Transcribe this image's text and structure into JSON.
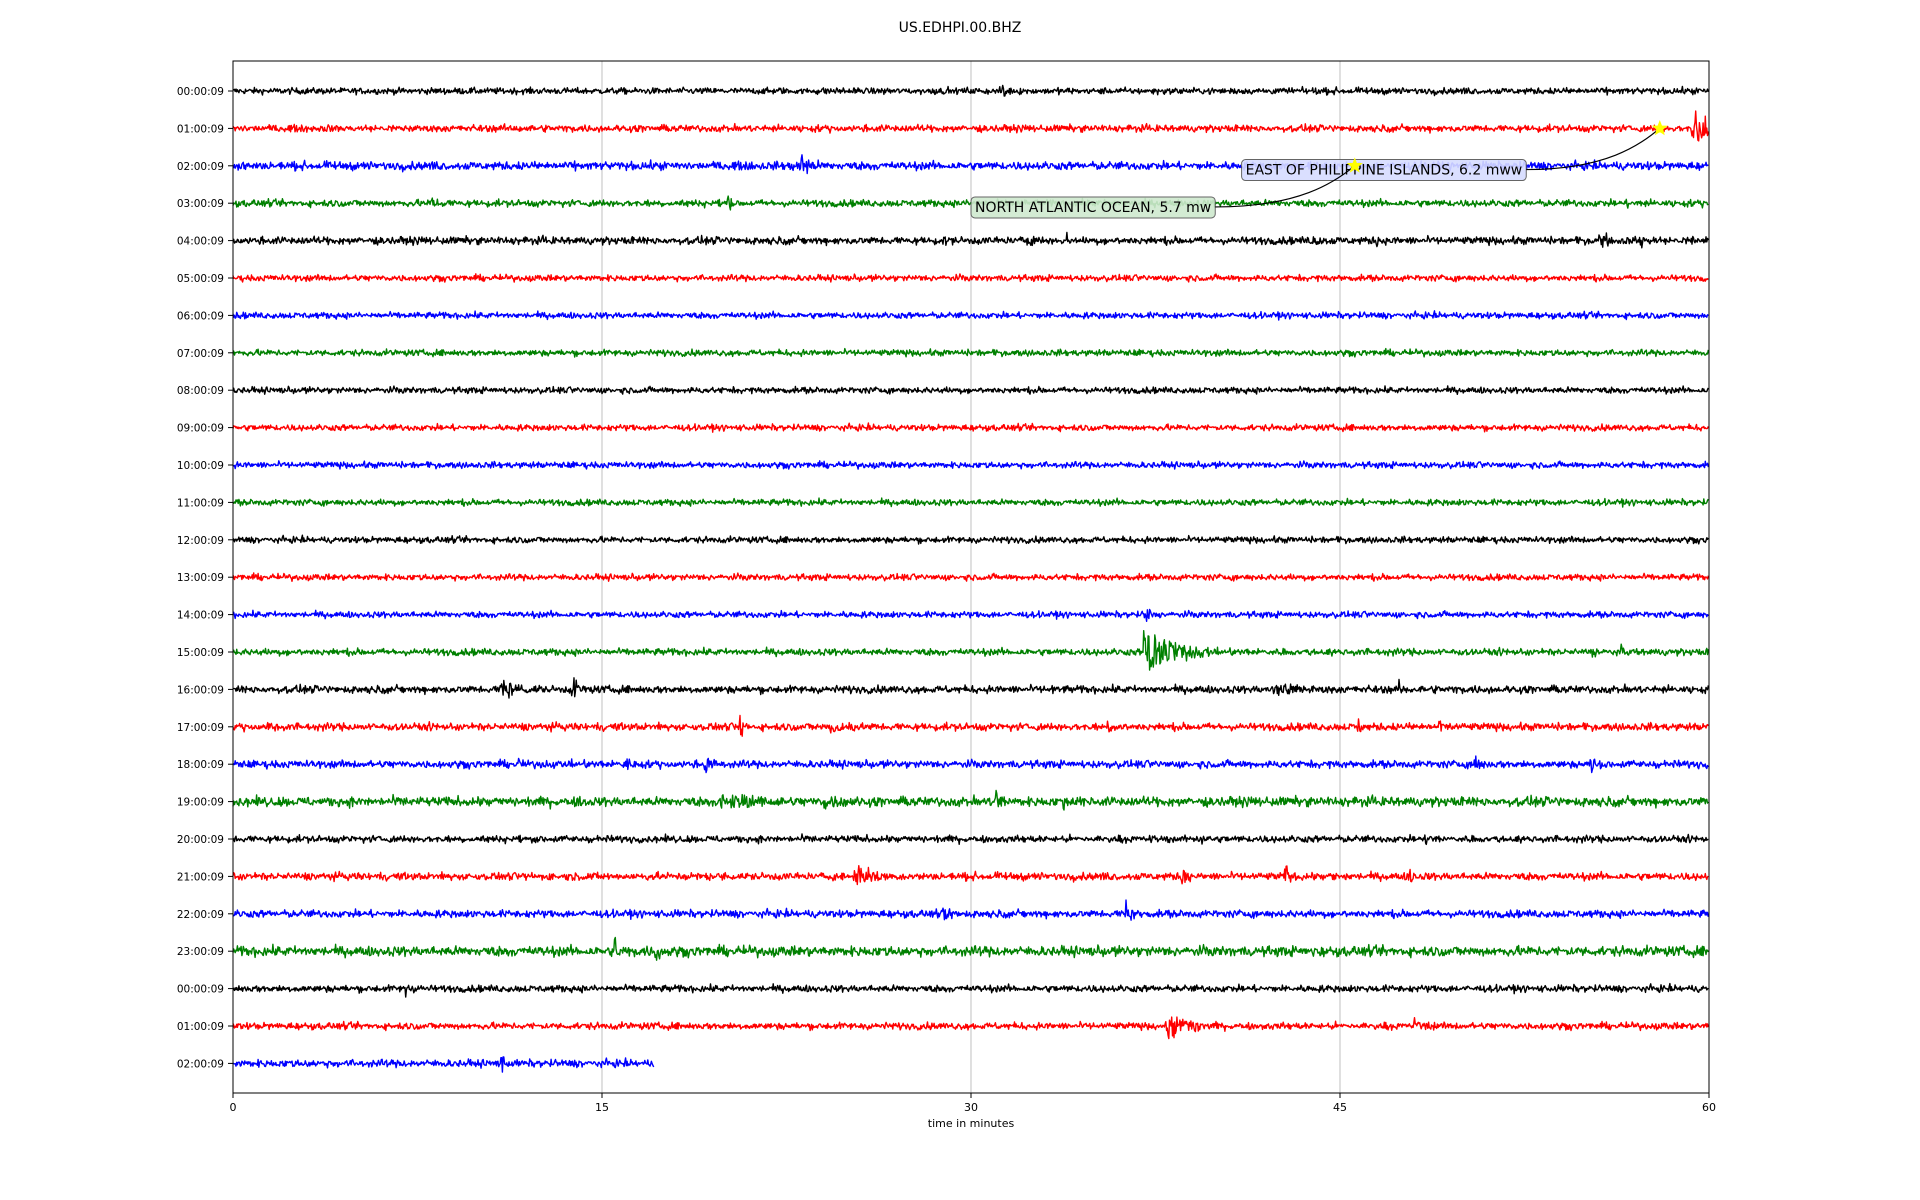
{
  "chart_data": {
    "type": "line",
    "title": "US.EDHPI.00.BHZ",
    "xlabel": "time in minutes",
    "ylabel": "",
    "xlim": [
      0,
      60
    ],
    "x_ticks": [
      0,
      15,
      30,
      45,
      60
    ],
    "x_tick_labels": [
      "0",
      "15",
      "30",
      "45",
      "60"
    ],
    "grid": "vertical",
    "colors": [
      "#000000",
      "#ff0000",
      "#0000ff",
      "#008000"
    ],
    "rows": [
      {
        "label": "00:00:09",
        "end_minute": 60,
        "noise": 1.0,
        "events": [
          {
            "t": 31.3,
            "amp": 13,
            "dur": 0.2
          },
          {
            "t": 21.8,
            "amp": 3,
            "dur": 0.1
          }
        ]
      },
      {
        "label": "01:00:09",
        "end_minute": 60,
        "noise": 1.1,
        "events": [
          {
            "t": 59.3,
            "amp": 24,
            "dur": 0.8
          },
          {
            "t": 59.8,
            "amp": 12,
            "dur": 0.3
          }
        ]
      },
      {
        "label": "02:00:09",
        "end_minute": 60,
        "noise": 1.3,
        "events": [
          {
            "t": 0.3,
            "amp": 9,
            "dur": 0.3
          },
          {
            "t": 21.0,
            "amp": 9,
            "dur": 0.2
          },
          {
            "t": 22.6,
            "amp": 9,
            "dur": 0.2
          },
          {
            "t": 23.1,
            "amp": 13,
            "dur": 0.2
          },
          {
            "t": 23.3,
            "amp": 13,
            "dur": 0.1
          }
        ]
      },
      {
        "label": "03:00:09",
        "end_minute": 60,
        "noise": 1.1,
        "events": [
          {
            "t": 8.1,
            "amp": 8,
            "dur": 0.2
          },
          {
            "t": 20.1,
            "amp": 11,
            "dur": 0.2
          },
          {
            "t": 56.7,
            "amp": 3,
            "dur": 0.2
          }
        ]
      },
      {
        "label": "04:00:09",
        "end_minute": 60,
        "noise": 1.2,
        "events": [
          {
            "t": 28.9,
            "amp": 6,
            "dur": 0.2
          },
          {
            "t": 32.2,
            "amp": 6,
            "dur": 0.2
          },
          {
            "t": 33.9,
            "amp": 5,
            "dur": 0.2
          },
          {
            "t": 43.9,
            "amp": 6,
            "dur": 0.3
          },
          {
            "t": 46.5,
            "amp": 5,
            "dur": 0.2
          },
          {
            "t": 55.5,
            "amp": 9,
            "dur": 0.9
          },
          {
            "t": 57.2,
            "amp": 11,
            "dur": 0.2
          },
          {
            "t": 59.3,
            "amp": 6,
            "dur": 0.3
          }
        ]
      },
      {
        "label": "05:00:09",
        "end_minute": 60,
        "noise": 1.0,
        "events": []
      },
      {
        "label": "06:00:09",
        "end_minute": 60,
        "noise": 1.0,
        "events": []
      },
      {
        "label": "07:00:09",
        "end_minute": 60,
        "noise": 1.0,
        "events": []
      },
      {
        "label": "08:00:09",
        "end_minute": 60,
        "noise": 1.0,
        "events": []
      },
      {
        "label": "09:00:09",
        "end_minute": 60,
        "noise": 1.0,
        "events": []
      },
      {
        "label": "10:00:09",
        "end_minute": 60,
        "noise": 1.0,
        "events": []
      },
      {
        "label": "11:00:09",
        "end_minute": 60,
        "noise": 1.0,
        "events": []
      },
      {
        "label": "12:00:09",
        "end_minute": 60,
        "noise": 1.0,
        "events": []
      },
      {
        "label": "13:00:09",
        "end_minute": 60,
        "noise": 1.0,
        "events": []
      },
      {
        "label": "14:00:09",
        "end_minute": 60,
        "noise": 1.0,
        "events": [
          {
            "t": 37.1,
            "amp": 18,
            "dur": 0.2
          }
        ]
      },
      {
        "label": "15:00:09",
        "end_minute": 60,
        "noise": 1.1,
        "events": [
          {
            "t": 37.0,
            "amp": 22,
            "dur": 2.4
          },
          {
            "t": 55.1,
            "amp": 9,
            "dur": 0.3
          },
          {
            "t": 56.4,
            "amp": 6,
            "dur": 0.3
          }
        ]
      },
      {
        "label": "16:00:09",
        "end_minute": 60,
        "noise": 1.2,
        "events": [
          {
            "t": 10.9,
            "amp": 10,
            "dur": 1.4
          },
          {
            "t": 13.8,
            "amp": 14,
            "dur": 0.3
          },
          {
            "t": 33.3,
            "amp": 5,
            "dur": 0.1
          },
          {
            "t": 42.3,
            "amp": 9,
            "dur": 1.4
          },
          {
            "t": 47.4,
            "amp": 6,
            "dur": 0.4
          }
        ]
      },
      {
        "label": "17:00:09",
        "end_minute": 60,
        "noise": 1.2,
        "events": [
          {
            "t": 1.4,
            "amp": 8,
            "dur": 0.2
          },
          {
            "t": 20.6,
            "amp": 12,
            "dur": 0.3
          },
          {
            "t": 24.3,
            "amp": 9,
            "dur": 0.9
          },
          {
            "t": 35.5,
            "amp": 10,
            "dur": 0.3
          },
          {
            "t": 45.7,
            "amp": 9,
            "dur": 0.3
          },
          {
            "t": 49.0,
            "amp": 8,
            "dur": 0.3
          }
        ]
      },
      {
        "label": "18:00:09",
        "end_minute": 60,
        "noise": 1.2,
        "events": [
          {
            "t": 11.6,
            "amp": 6,
            "dur": 0.2
          },
          {
            "t": 15.9,
            "amp": 14,
            "dur": 0.2
          },
          {
            "t": 19.2,
            "amp": 14,
            "dur": 0.3
          },
          {
            "t": 50.5,
            "amp": 12,
            "dur": 0.2
          },
          {
            "t": 55.2,
            "amp": 14,
            "dur": 0.3
          }
        ]
      },
      {
        "label": "19:00:09",
        "end_minute": 60,
        "noise": 1.5,
        "events": [
          {
            "t": 14.0,
            "amp": 8,
            "dur": 0.3
          },
          {
            "t": 19.8,
            "amp": 8,
            "dur": 2.5
          },
          {
            "t": 24.0,
            "amp": 7,
            "dur": 1.2
          },
          {
            "t": 31.0,
            "amp": 14,
            "dur": 0.3
          },
          {
            "t": 33.7,
            "amp": 8,
            "dur": 0.3
          },
          {
            "t": 34.4,
            "amp": 14,
            "dur": 0.2
          }
        ]
      },
      {
        "label": "20:00:09",
        "end_minute": 60,
        "noise": 1.1,
        "events": [
          {
            "t": 39.2,
            "amp": 10,
            "dur": 0.4
          },
          {
            "t": 48.4,
            "amp": 5,
            "dur": 0.6
          }
        ]
      },
      {
        "label": "21:00:09",
        "end_minute": 60,
        "noise": 1.2,
        "events": [
          {
            "t": 25.3,
            "amp": 14,
            "dur": 1.0
          },
          {
            "t": 38.6,
            "amp": 14,
            "dur": 0.3
          },
          {
            "t": 42.8,
            "amp": 14,
            "dur": 0.3
          },
          {
            "t": 44.7,
            "amp": 9,
            "dur": 0.2
          },
          {
            "t": 47.8,
            "amp": 9,
            "dur": 0.4
          }
        ]
      },
      {
        "label": "22:00:09",
        "end_minute": 60,
        "noise": 1.2,
        "events": [
          {
            "t": 28.9,
            "amp": 11,
            "dur": 0.3
          },
          {
            "t": 36.3,
            "amp": 14,
            "dur": 0.3
          }
        ]
      },
      {
        "label": "23:00:09",
        "end_minute": 60,
        "noise": 1.6,
        "events": [
          {
            "t": 15.5,
            "amp": 14,
            "dur": 0.3
          },
          {
            "t": 17.2,
            "amp": 12,
            "dur": 0.3
          },
          {
            "t": 43.6,
            "amp": 4,
            "dur": 0.2
          }
        ]
      },
      {
        "label": "00:00:09",
        "end_minute": 60,
        "noise": 1.1,
        "events": [
          {
            "t": 7.0,
            "amp": 10,
            "dur": 0.2
          }
        ]
      },
      {
        "label": "01:00:09",
        "end_minute": 60,
        "noise": 1.1,
        "events": [
          {
            "t": 38.0,
            "amp": 14,
            "dur": 1.6
          },
          {
            "t": 48.0,
            "amp": 9,
            "dur": 0.6
          }
        ]
      },
      {
        "label": "02:00:09",
        "end_minute": 17.1,
        "noise": 1.2,
        "events": [
          {
            "t": 10.9,
            "amp": 14,
            "dur": 0.2
          }
        ]
      }
    ],
    "annotations": [
      {
        "text": "EAST OF PHILIPPINE ISLANDS, 6.2 mww",
        "row": 1,
        "t": 58.0,
        "box_row": 2.1,
        "box_t": 41.0,
        "box_color": "#d7dcff",
        "star_color": "#ffff00"
      },
      {
        "text": "NORTH ATLANTIC OCEAN, 5.7 mw",
        "row": 2,
        "t": 45.6,
        "box_row": 3.1,
        "box_t": 30.0,
        "box_color": "#cfe9cf",
        "star_color": "#ffff00"
      }
    ]
  }
}
